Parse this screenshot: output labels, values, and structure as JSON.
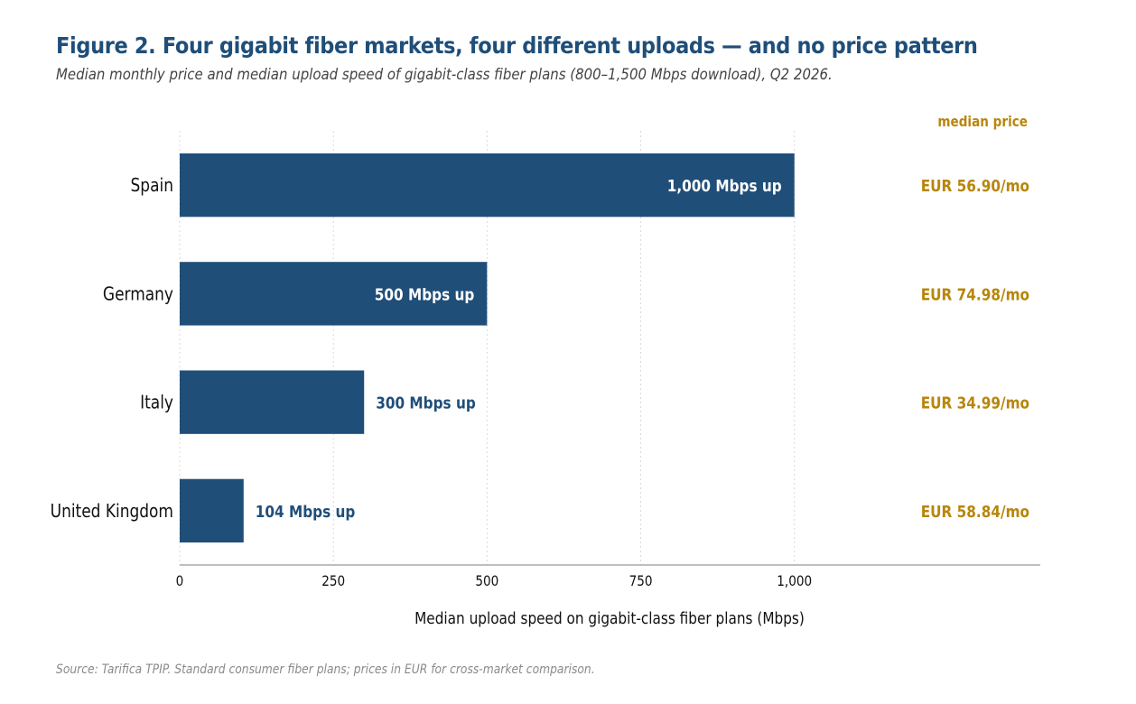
{
  "title": "Figure 2.  Four gigabit fiber markets, four different uploads — and no price pattern",
  "subtitle": "Median monthly price and median upload speed of gigabit-class fiber plans (800–1,500 Mbps download), Q2 2026.",
  "source": "Source: Tarifica TPIP. Standard consumer fiber plans; prices in EUR for cross-market comparison.",
  "colors": {
    "bar": "#1f4e79",
    "price": "#b8860b",
    "inside_label": "#ffffff",
    "grid": "#d9d9d9",
    "axis": "#999999"
  },
  "chart_data": {
    "type": "bar",
    "orientation": "horizontal",
    "categories": [
      "Spain",
      "Germany",
      "Italy",
      "United Kingdom"
    ],
    "values": [
      1000,
      500,
      300,
      104
    ],
    "data_labels": [
      "1,000 Mbps up",
      "500 Mbps up",
      "300 Mbps up",
      "104 Mbps up"
    ],
    "price_header": "median price",
    "prices": [
      "EUR 56.90/mo",
      "EUR 74.98/mo",
      "EUR 34.99/mo",
      "EUR 58.84/mo"
    ],
    "xlabel": "Median upload speed on gigabit-class fiber plans (Mbps)",
    "ylabel": "",
    "xlim": [
      0,
      1400
    ],
    "xticks": [
      0,
      250,
      500,
      750,
      1000
    ],
    "xtick_labels": [
      "0",
      "250",
      "500",
      "750",
      "1,000"
    ],
    "grid": true,
    "legend": "none"
  }
}
